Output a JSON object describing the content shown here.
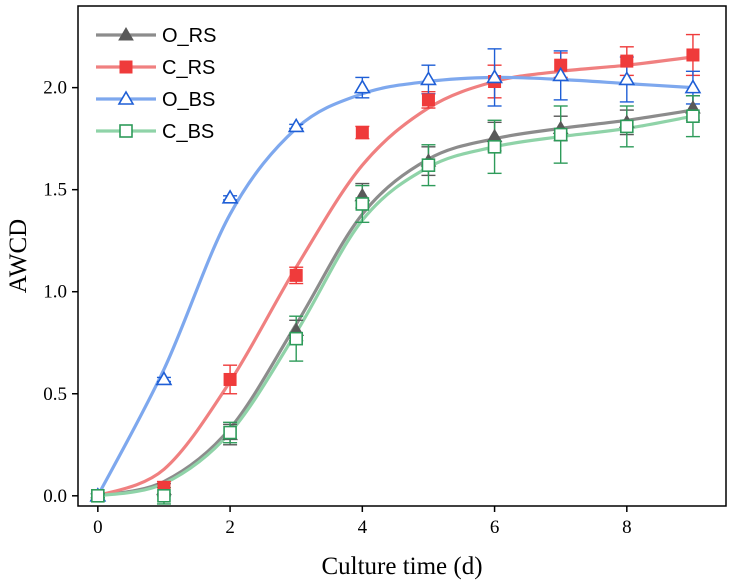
{
  "chart_data": {
    "type": "line",
    "title": "",
    "xlabel": "Culture time (d)",
    "ylabel": "AWCD",
    "xlim": [
      -0.3,
      9.5
    ],
    "ylim": [
      -0.05,
      2.4
    ],
    "xticks": [
      0,
      2,
      4,
      6,
      8
    ],
    "yticks": [
      0.0,
      0.5,
      1.0,
      1.5,
      2.0
    ],
    "xtick_labels": [
      "0",
      "2",
      "4",
      "6",
      "8"
    ],
    "ytick_labels": [
      "0.0",
      "0.5",
      "1.0",
      "1.5",
      "2.0"
    ],
    "legend_position": "top-left",
    "x": [
      0,
      1,
      2,
      3,
      4,
      5,
      6,
      7,
      8,
      9
    ],
    "series": [
      {
        "name": "O_RS",
        "color": "#595959",
        "line_color": "#8c8c8c",
        "marker": "triangle-filled",
        "values": [
          0.0,
          0.03,
          0.3,
          0.81,
          1.47,
          1.64,
          1.76,
          1.8,
          1.83,
          1.9
        ],
        "errors": [
          0.01,
          0.03,
          0.05,
          0.05,
          0.06,
          0.07,
          0.07,
          0.06,
          0.06,
          0.06
        ],
        "fit": [
          0.0,
          0.07,
          0.33,
          0.84,
          1.38,
          1.65,
          1.75,
          1.8,
          1.84,
          1.89
        ]
      },
      {
        "name": "C_RS",
        "color": "#ef3b3b",
        "line_color": "#f08080",
        "marker": "square-filled",
        "values": [
          0.0,
          0.04,
          0.57,
          1.08,
          1.78,
          1.94,
          2.03,
          2.11,
          2.13,
          2.16
        ],
        "errors": [
          0.01,
          0.03,
          0.07,
          0.04,
          0.03,
          0.04,
          0.08,
          0.06,
          0.07,
          0.1
        ],
        "fit": [
          0.0,
          0.13,
          0.56,
          1.12,
          1.62,
          1.9,
          2.03,
          2.08,
          2.11,
          2.15
        ]
      },
      {
        "name": "O_BS",
        "color": "#1f5fd6",
        "line_color": "#7ea8ee",
        "marker": "triangle-open",
        "values": [
          0.0,
          0.57,
          1.46,
          1.81,
          2.0,
          2.04,
          2.05,
          2.06,
          2.04,
          2.0
        ],
        "errors": [
          0.01,
          0.01,
          0.01,
          0.01,
          0.05,
          0.07,
          0.14,
          0.12,
          0.11,
          0.08
        ],
        "fit": [
          0.0,
          0.62,
          1.38,
          1.8,
          1.97,
          2.03,
          2.05,
          2.04,
          2.02,
          2.0
        ]
      },
      {
        "name": "C_BS",
        "color": "#2e9b5a",
        "line_color": "#8fd3a8",
        "marker": "square-open",
        "values": [
          0.0,
          0.0,
          0.31,
          0.77,
          1.43,
          1.62,
          1.71,
          1.77,
          1.81,
          1.86
        ],
        "errors": [
          0.01,
          0.04,
          0.05,
          0.11,
          0.09,
          0.1,
          0.13,
          0.14,
          0.1,
          0.1
        ],
        "fit": [
          0.0,
          0.06,
          0.31,
          0.8,
          1.35,
          1.61,
          1.71,
          1.76,
          1.8,
          1.86
        ]
      }
    ]
  }
}
